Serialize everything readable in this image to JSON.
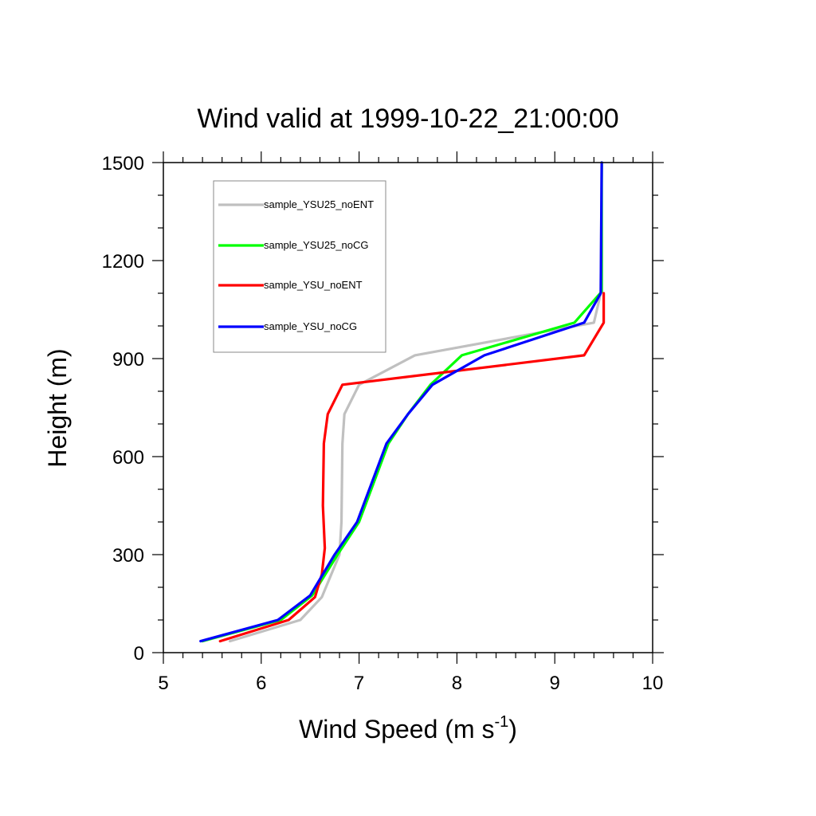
{
  "chart_data": {
    "type": "line",
    "title": "Wind valid at 1999-10-22_21:00:00",
    "xlabel": "Wind Speed (m s",
    "xlabel_sup": "-1",
    "xlabel_close": ")",
    "ylabel": "Height (m)",
    "xlim": [
      5,
      10
    ],
    "ylim": [
      0,
      1500
    ],
    "xticks": [
      "5",
      "6",
      "7",
      "8",
      "9",
      "10"
    ],
    "yticks": [
      "0",
      "300",
      "600",
      "900",
      "1200",
      "1500"
    ],
    "legend_position": "top-left",
    "series": [
      {
        "name": "sample_YSU25_noENT",
        "color": "#c0c0c0",
        "x": [
          5.68,
          6.4,
          6.62,
          6.8,
          6.82,
          6.83,
          6.85,
          7.0,
          7.57,
          9.4,
          9.47,
          9.48
        ],
        "y": [
          35,
          100,
          170,
          300,
          400,
          640,
          730,
          820,
          910,
          1010,
          1100,
          1500
        ]
      },
      {
        "name": "sample_YSU25_noCG",
        "color": "#00ff00",
        "x": [
          5.4,
          6.2,
          6.52,
          6.78,
          7.0,
          7.3,
          7.5,
          7.73,
          8.05,
          9.2,
          9.48,
          9.48
        ],
        "y": [
          35,
          100,
          175,
          300,
          400,
          640,
          730,
          820,
          910,
          1010,
          1105,
          1500
        ]
      },
      {
        "name": "sample_YSU_noENT",
        "color": "#ff0000",
        "x": [
          5.58,
          6.28,
          6.55,
          6.62,
          6.65,
          6.63,
          6.64,
          6.68,
          6.83,
          9.3,
          9.5,
          9.5
        ],
        "y": [
          35,
          100,
          170,
          240,
          320,
          450,
          640,
          730,
          820,
          910,
          1010,
          1100
        ]
      },
      {
        "name": "sample_YSU_noCG",
        "color": "#0000ff",
        "x": [
          5.38,
          6.17,
          6.5,
          6.75,
          6.98,
          7.28,
          7.5,
          7.75,
          8.28,
          9.3,
          9.47,
          9.48
        ],
        "y": [
          35,
          100,
          175,
          300,
          400,
          640,
          730,
          820,
          910,
          1010,
          1100,
          1500
        ]
      }
    ]
  }
}
